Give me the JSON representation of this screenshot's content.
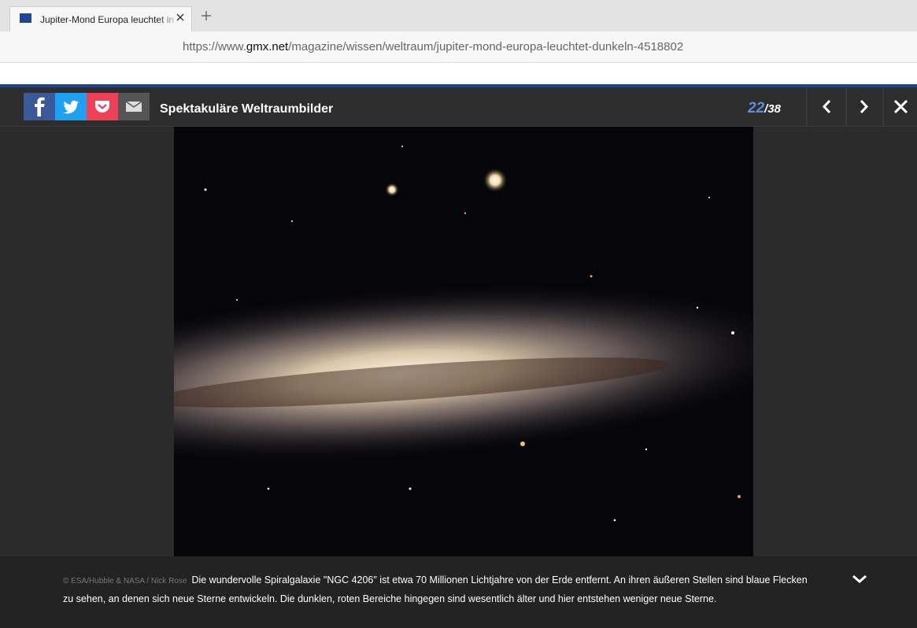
{
  "browser": {
    "tab_title": "Jupiter-Mond Europa leuchtet in",
    "url": {
      "prefix": "https://www.",
      "domain": "gmx.net",
      "path": "/magazine/wissen/weltraum/jupiter-mond-europa-leuchtet-dunkeln-4518802"
    }
  },
  "gallery": {
    "title": "Spektakuläre Weltraumbilder",
    "counter": {
      "current": "22",
      "separator": "/",
      "total": "38"
    },
    "credit": "© ESA/Hubble & NASA / Nick Rose",
    "caption": "Die wundervolle Spiralgalaxie \"NGC 4206\" ist etwa 70 Millionen Lichtjahre von der Erde entfernt. An ihren äußeren Stellen sind blaue Flecken zu sehen, an denen sich neue Sterne entwickeln. Die dunklen, roten Bereiche hingegen sind wesentlich älter und hier entstehen weniger neue Sterne."
  }
}
